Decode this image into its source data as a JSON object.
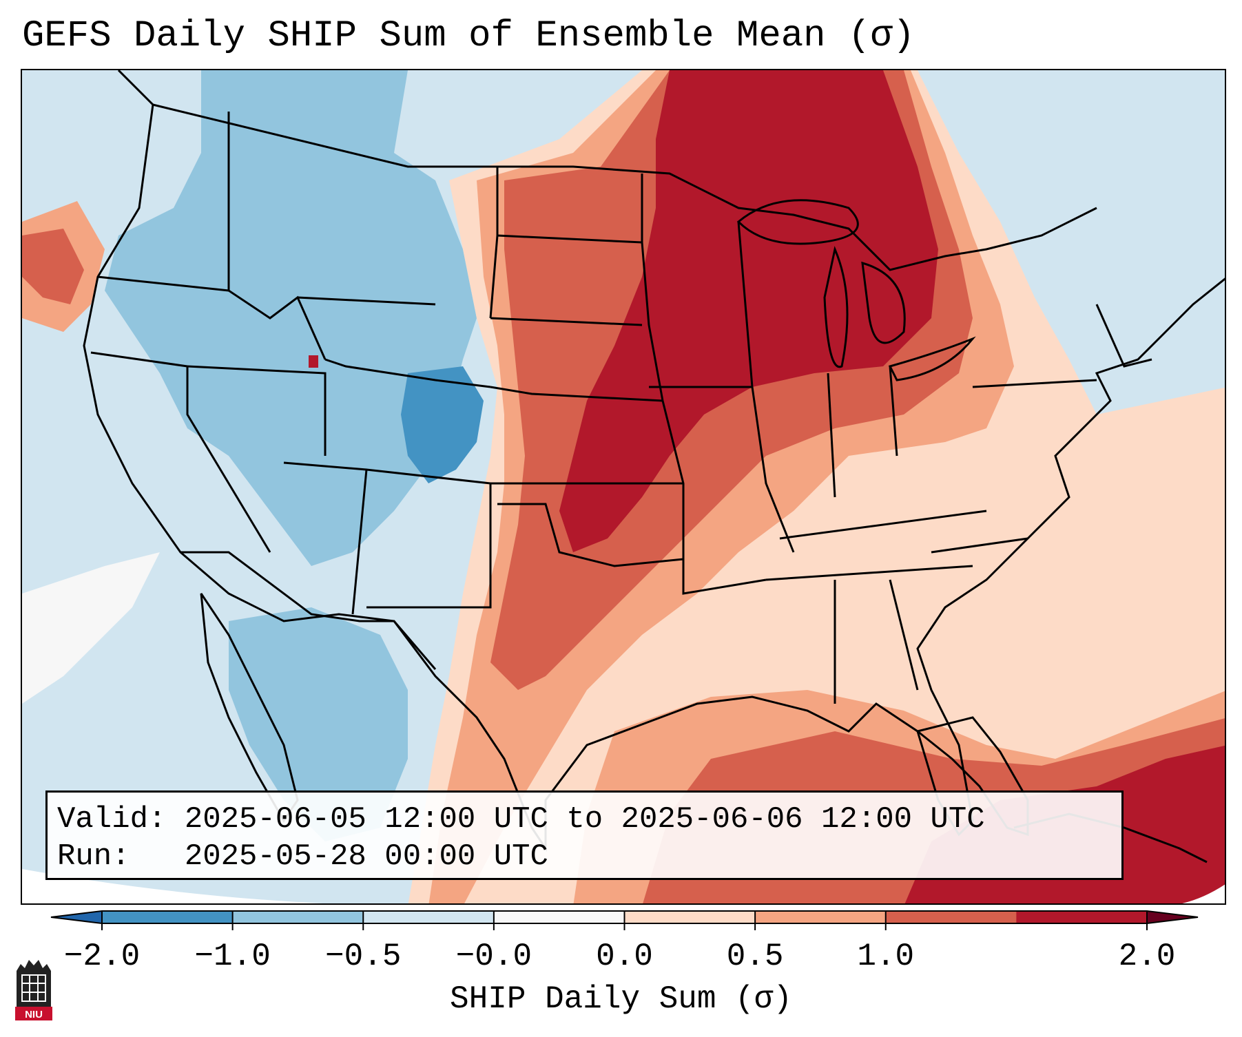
{
  "title": "GEFS Daily SHIP Sum of Ensemble Mean (σ)",
  "info": {
    "valid_label": "Valid:",
    "valid_value": "2025-06-05 12:00 UTC to 2025-06-06 12:00 UTC",
    "run_label": "Run:",
    "run_value": "2025-05-28 00:00 UTC"
  },
  "colorbar": {
    "label": "SHIP Daily Sum (σ)",
    "ticks": [
      "−2.0",
      "−1.0",
      "−0.5",
      "−0.0",
      "0.0",
      "0.5",
      "1.0",
      "2.0"
    ],
    "colors": [
      "#4393c3",
      "#92c5de",
      "#d1e5f0",
      "#f7f7f7",
      "#fddbc7",
      "#f4a582",
      "#d6604d",
      "#b2182b"
    ],
    "under_color": "#2166ac",
    "over_color": "#67001f"
  },
  "map": {
    "region": "CONUS",
    "palette": {
      "strong_negative": "#4393c3",
      "negative": "#92c5de",
      "weak_negative": "#d1e5f0",
      "neutral": "#f7f7f7",
      "weak_positive": "#fddbc7",
      "positive": "#f4a582",
      "strong_positive": "#d6604d",
      "very_strong_positive": "#b2182b"
    }
  },
  "logo": {
    "text": "NIU",
    "color": "#c8102e"
  }
}
